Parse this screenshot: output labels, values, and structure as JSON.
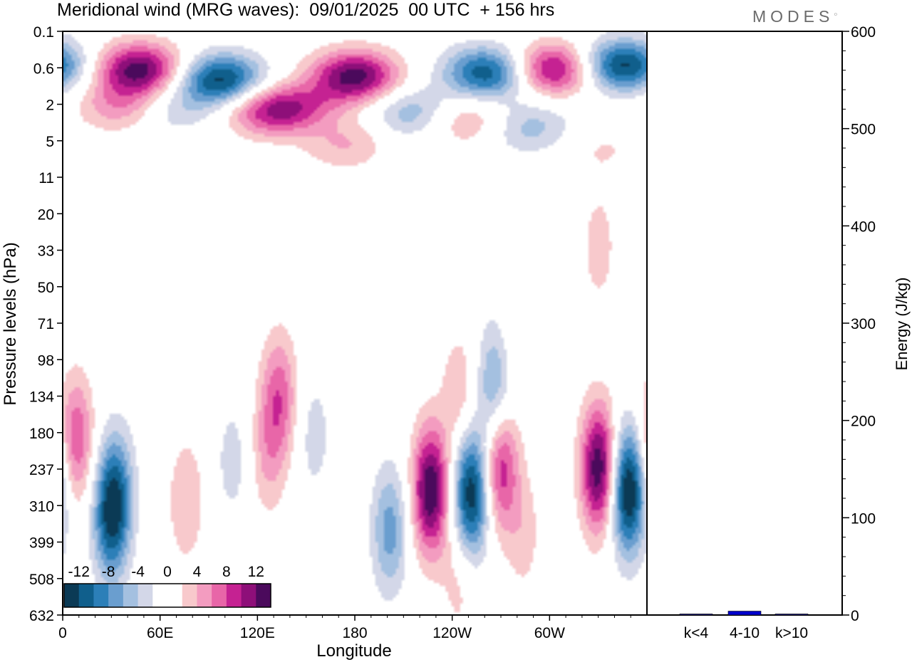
{
  "title": "Meridional wind (MRG waves):  09/01/2025  00 UTC  + 156 hrs",
  "logo_text": "MODES",
  "chart_data": [
    {
      "type": "heatmap",
      "title": "Meridional wind (MRG waves):  09/01/2025  00 UTC  + 156 hrs",
      "xlabel": "Longitude",
      "ylabel": "Pressure levels (hPa)",
      "x_ticks": [
        "0",
        "60E",
        "120E",
        "180",
        "120W",
        "60W"
      ],
      "y_ticks": [
        "0.1",
        "0.6",
        "2",
        "5",
        "11",
        "20",
        "33",
        "50",
        "71",
        "98",
        "134",
        "180",
        "237",
        "310",
        "399",
        "508",
        "632"
      ],
      "colorbar": {
        "labels": [
          "-12",
          "-8",
          "-4",
          "0",
          "4",
          "8",
          "12"
        ],
        "colors": [
          "#0b3a55",
          "#105f8c",
          "#2c7fb8",
          "#6a9ecf",
          "#a4c0e0",
          "#d3d7e8",
          "#ffffff",
          "#ffffff",
          "#f8c9cc",
          "#f39cc0",
          "#e866a8",
          "#c52292",
          "#8e0f79",
          "#4b0a5c"
        ]
      },
      "features": [
        {
          "col": 0.13,
          "row": 1.0,
          "value": 13
        },
        {
          "col": 0.27,
          "row": 1.3,
          "value": -13
        },
        {
          "col": 0.5,
          "row": 1.2,
          "value": 13
        },
        {
          "col": 0.73,
          "row": 1.1,
          "value": -12
        },
        {
          "col": 0.84,
          "row": 1.0,
          "value": 12
        },
        {
          "col": 0.96,
          "row": 0.9,
          "value": -13
        },
        {
          "col": 0.35,
          "row": 2.1,
          "value": 9
        },
        {
          "col": 0.1,
          "row": 2.0,
          "value": 6
        },
        {
          "col": 0.42,
          "row": 2.2,
          "value": 7
        },
        {
          "col": 0.18,
          "row": 2.1,
          "value": -4
        },
        {
          "col": 0.6,
          "row": 2.2,
          "value": -6
        },
        {
          "col": 0.44,
          "row": 2.5,
          "value": -4
        },
        {
          "col": 0.8,
          "row": 2.6,
          "value": -5
        },
        {
          "col": 0.69,
          "row": 2.4,
          "value": 5
        },
        {
          "col": 0.48,
          "row": 3.0,
          "value": 5
        },
        {
          "col": 0.93,
          "row": 3.2,
          "value": 2
        },
        {
          "col": 0.62,
          "row": 5.3,
          "value": 2
        },
        {
          "col": 0.92,
          "row": 5.9,
          "value": 3
        },
        {
          "col": 0.75,
          "row": 5.6,
          "value": -2
        },
        {
          "col": 0.02,
          "row": 11.2,
          "value": 8
        },
        {
          "col": 0.09,
          "row": 12.5,
          "value": -6
        },
        {
          "col": 0.08,
          "row": 13.4,
          "value": -10
        },
        {
          "col": 0.21,
          "row": 12.9,
          "value": 4
        },
        {
          "col": 0.29,
          "row": 11.8,
          "value": -3
        },
        {
          "col": 0.37,
          "row": 10.0,
          "value": 7
        },
        {
          "col": 0.35,
          "row": 11.6,
          "value": 4
        },
        {
          "col": 0.43,
          "row": 11.1,
          "value": -3
        },
        {
          "col": 0.56,
          "row": 13.7,
          "value": -7
        },
        {
          "col": 0.63,
          "row": 12.6,
          "value": 14
        },
        {
          "col": 0.7,
          "row": 12.7,
          "value": -14
        },
        {
          "col": 0.75,
          "row": 11.9,
          "value": 10
        },
        {
          "col": 0.74,
          "row": 9.8,
          "value": -7
        },
        {
          "col": 0.68,
          "row": 10.0,
          "value": 4
        },
        {
          "col": 0.79,
          "row": 13.8,
          "value": 3
        },
        {
          "col": 0.92,
          "row": 12.0,
          "value": 14
        },
        {
          "col": 0.97,
          "row": 12.6,
          "value": -15
        },
        {
          "col": 0.68,
          "row": 15.0,
          "value": 3
        },
        {
          "col": 0.78,
          "row": 8.0,
          "value": 2
        }
      ]
    },
    {
      "type": "bar",
      "ylabel": "Energy (J/kg)",
      "ylim": [
        0,
        600
      ],
      "y_ticks": [
        "0",
        "100",
        "200",
        "300",
        "400",
        "500",
        "600"
      ],
      "categories": [
        "k<4",
        "4-10",
        "k>10"
      ],
      "values": [
        0.5,
        4,
        0.5
      ],
      "bar_colors": [
        "#1a1a80",
        "#0000cc",
        "#1a1a80"
      ]
    }
  ]
}
